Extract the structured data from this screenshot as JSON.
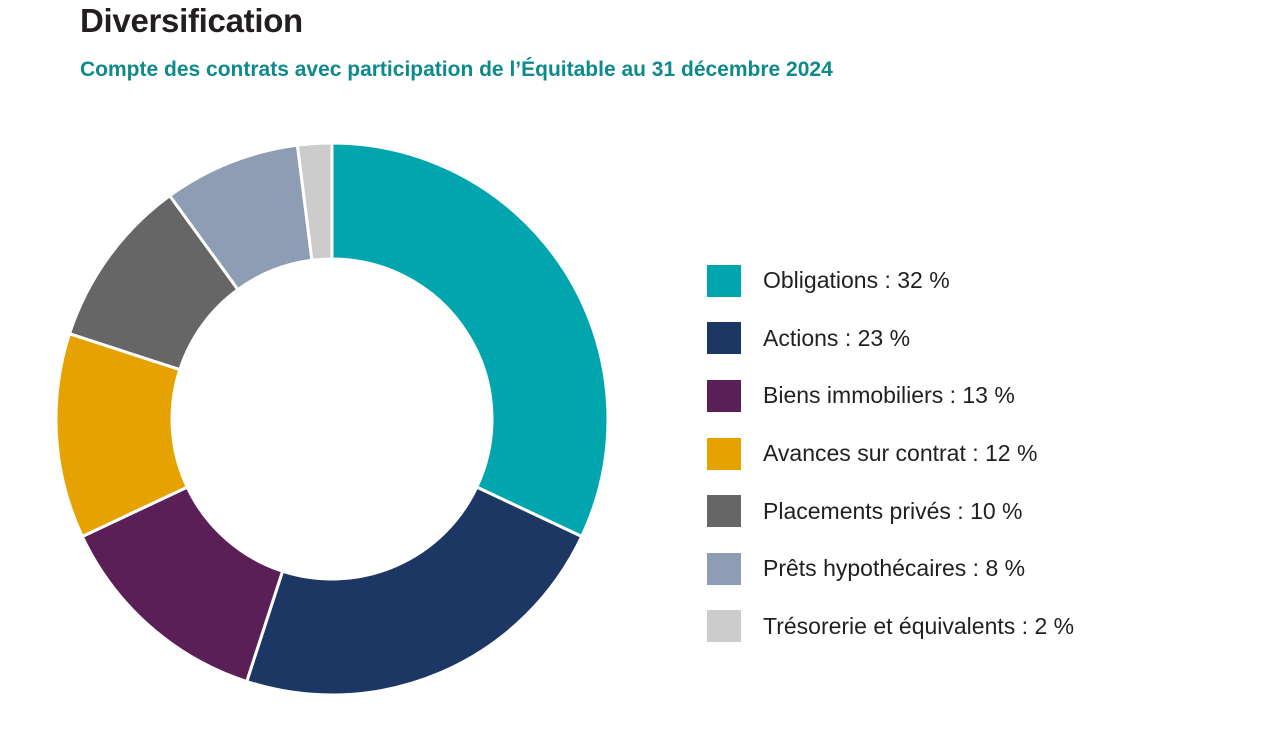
{
  "header": {
    "title": "Diversification",
    "subtitle": "Compte des contrats avec participation de l’Équitable au 31 décembre 2024"
  },
  "chart_data": {
    "type": "pie",
    "variant": "donut",
    "title": "Diversification",
    "subtitle": "Compte des contrats avec participation de l’Équitable au 31 décembre 2024",
    "legend_position": "right",
    "slices": [
      {
        "label": "Obligations : 32 %",
        "name": "Obligations",
        "value": 32,
        "color": "#00a5ae"
      },
      {
        "label": "Actions : 23 %",
        "name": "Actions",
        "value": 23,
        "color": "#1d3764"
      },
      {
        "label": "Biens immobiliers : 13 %",
        "name": "Biens immobiliers",
        "value": 13,
        "color": "#5b1f58"
      },
      {
        "label": "Avances sur contrat : 12 %",
        "name": "Avances sur contrat",
        "value": 12,
        "color": "#e5a200"
      },
      {
        "label": "Placements privés : 10 %",
        "name": "Placements privés",
        "value": 10,
        "color": "#666666"
      },
      {
        "label": "Prêts hypothécaires : 8 %",
        "name": "Prêts hypothécaires",
        "value": 8,
        "color": "#8e9db3"
      },
      {
        "label": "Trésorerie et équivalents : 2 %",
        "name": "Trésorerie et équivalents",
        "value": 2,
        "color": "#cccccc"
      }
    ]
  }
}
